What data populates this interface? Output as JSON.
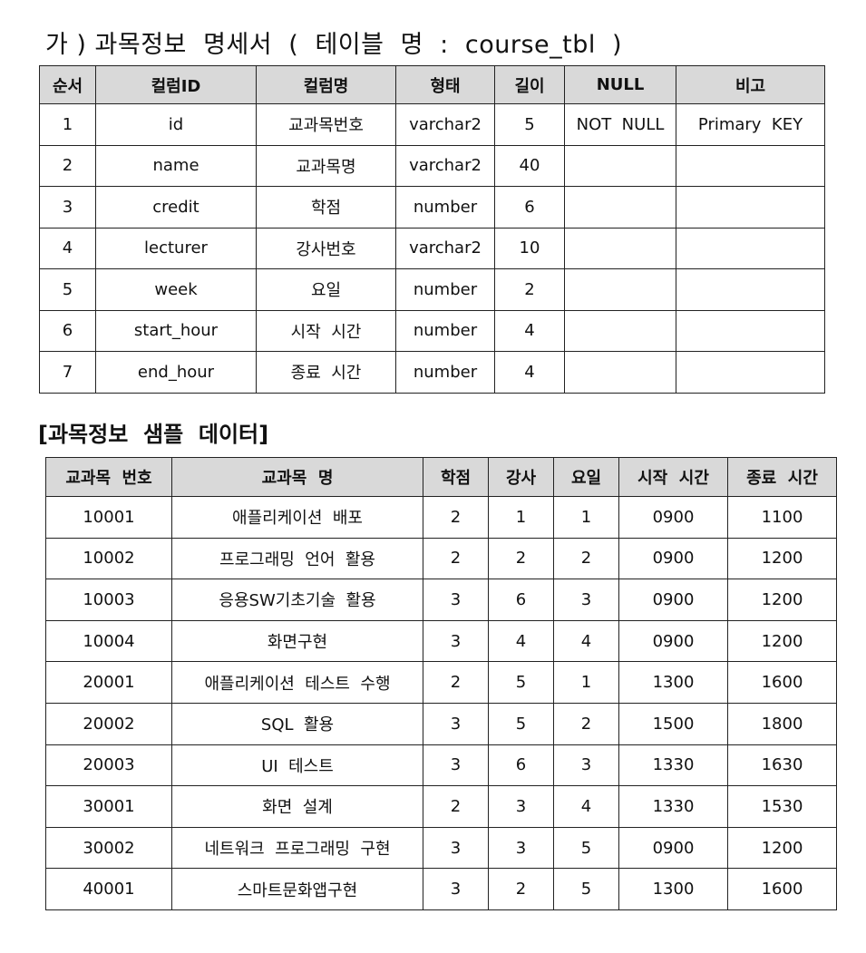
{
  "spec": {
    "title": "가 ) 과목정보  명세서  (  테이블  명  :  course_tbl  )",
    "headers": [
      "순서",
      "컬럼ID",
      "컬럼명",
      "형태",
      "길이",
      "NULL",
      "비고"
    ],
    "rows": [
      [
        "1",
        "id",
        "교과목번호",
        "varchar2",
        "5",
        "NOT  NULL",
        "Primary  KEY"
      ],
      [
        "2",
        "name",
        "교과목명",
        "varchar2",
        "40",
        "",
        ""
      ],
      [
        "3",
        "credit",
        "학점",
        "number",
        "6",
        "",
        ""
      ],
      [
        "4",
        "lecturer",
        "강사번호",
        "varchar2",
        "10",
        "",
        ""
      ],
      [
        "5",
        "week",
        "요일",
        "number",
        "2",
        "",
        ""
      ],
      [
        "6",
        "start_hour",
        "시작  시간",
        "number",
        "4",
        "",
        ""
      ],
      [
        "7",
        "end_hour",
        "종료  시간",
        "number",
        "4",
        "",
        ""
      ]
    ]
  },
  "sample": {
    "title": "[과목정보  샘플  데이터]",
    "headers": [
      "교과목  번호",
      "교과목  명",
      "학점",
      "강사",
      "요일",
      "시작  시간",
      "종료  시간"
    ],
    "rows": [
      [
        "10001",
        "애플리케이션  배포",
        "2",
        "1",
        "1",
        "0900",
        "1100"
      ],
      [
        "10002",
        "프로그래밍  언어  활용",
        "2",
        "2",
        "2",
        "0900",
        "1200"
      ],
      [
        "10003",
        "응용SW기초기술  활용",
        "3",
        "6",
        "3",
        "0900",
        "1200"
      ],
      [
        "10004",
        "화면구현",
        "3",
        "4",
        "4",
        "0900",
        "1200"
      ],
      [
        "20001",
        "애플리케이션  테스트  수행",
        "2",
        "5",
        "1",
        "1300",
        "1600"
      ],
      [
        "20002",
        "SQL  활용",
        "3",
        "5",
        "2",
        "1500",
        "1800"
      ],
      [
        "20003",
        "UI  테스트",
        "3",
        "6",
        "3",
        "1330",
        "1630"
      ],
      [
        "30001",
        "화면  설계",
        "2",
        "3",
        "4",
        "1330",
        "1530"
      ],
      [
        "30002",
        "네트워크  프로그래밍  구현",
        "3",
        "3",
        "5",
        "0900",
        "1200"
      ],
      [
        "40001",
        "스마트문화앱구현",
        "3",
        "2",
        "5",
        "1300",
        "1600"
      ]
    ]
  }
}
